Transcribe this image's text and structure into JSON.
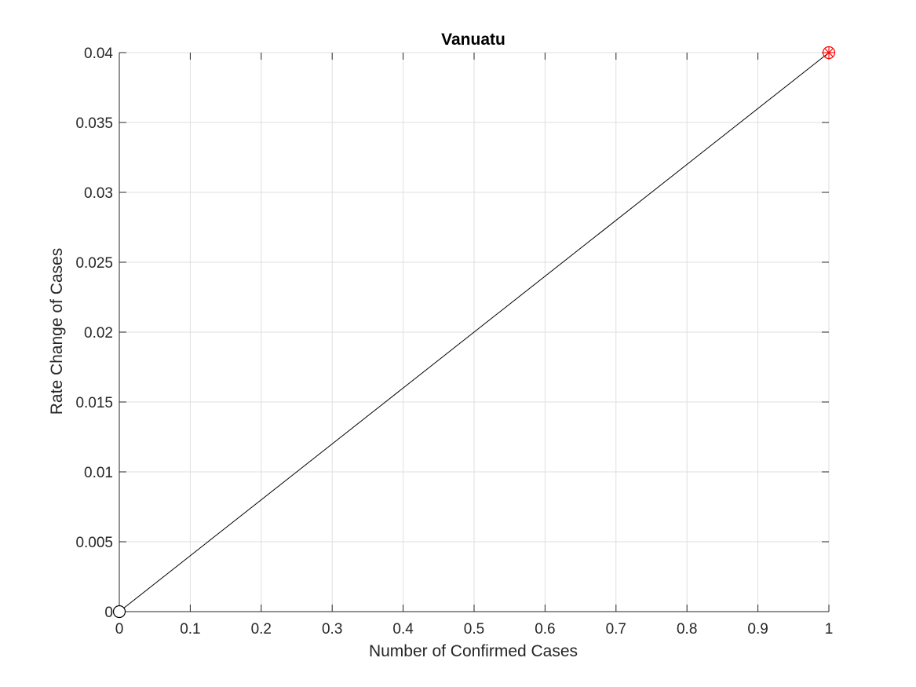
{
  "chart_data": {
    "type": "line",
    "title": "Vanuatu",
    "xlabel": "Number of Confirmed Cases",
    "ylabel": "Rate Change of Cases",
    "xlim": [
      0,
      1
    ],
    "ylim": [
      0,
      0.04
    ],
    "xticks": [
      "0",
      "0.1",
      "0.2",
      "0.3",
      "0.4",
      "0.5",
      "0.6",
      "0.7",
      "0.8",
      "0.9",
      "1"
    ],
    "yticks": [
      "0",
      "0.005",
      "0.01",
      "0.015",
      "0.02",
      "0.025",
      "0.03",
      "0.035",
      "0.04"
    ],
    "grid": true,
    "series": [
      {
        "x": [
          0,
          1
        ],
        "y": [
          0,
          0.04
        ],
        "color": "#000000"
      }
    ],
    "markers": {
      "start": {
        "x": 0,
        "y": 0,
        "shape": "open-circle",
        "color": "#000000"
      },
      "end": {
        "x": 1,
        "y": 0.04,
        "shape": "circle-asterisk",
        "color": "#ff0000"
      }
    }
  }
}
